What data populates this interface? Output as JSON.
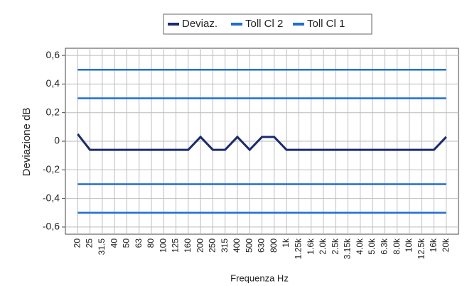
{
  "chart_data": {
    "type": "line",
    "categories": [
      "20",
      "25",
      "31.5",
      "40",
      "50",
      "63",
      "80",
      "100",
      "125",
      "160",
      "200",
      "250",
      "315",
      "400",
      "500",
      "630",
      "800",
      "1k",
      "1.25k",
      "1.6k",
      "2.0k",
      "2.5k",
      "3.15k",
      "4.0k",
      "5.0k",
      "6.3k",
      "8.0k",
      "10k",
      "12.5k",
      "16k",
      "20k"
    ],
    "series": [
      {
        "name": "Deviaz.",
        "color": "#1b2b6e",
        "values": [
          0.05,
          -0.06,
          -0.06,
          -0.06,
          -0.06,
          -0.06,
          -0.06,
          -0.06,
          -0.06,
          -0.06,
          0.03,
          -0.06,
          -0.06,
          0.03,
          -0.06,
          0.03,
          0.03,
          -0.06,
          -0.06,
          -0.06,
          -0.06,
          -0.06,
          -0.06,
          -0.06,
          -0.06,
          -0.06,
          -0.06,
          -0.06,
          -0.06,
          -0.06,
          0.03
        ]
      },
      {
        "name": "Toll Cl 2",
        "color": "#1f6fd0",
        "values": [
          0.3,
          0.3,
          0.3,
          0.3,
          0.3,
          0.3,
          0.3,
          0.3,
          0.3,
          0.3,
          0.3,
          0.3,
          0.3,
          0.3,
          0.3,
          0.3,
          0.3,
          0.3,
          0.3,
          0.3,
          0.3,
          0.3,
          0.3,
          0.3,
          0.3,
          0.3,
          0.3,
          0.3,
          0.3,
          0.3,
          0.3
        ],
        "lower": [
          -0.3,
          -0.3,
          -0.3,
          -0.3,
          -0.3,
          -0.3,
          -0.3,
          -0.3,
          -0.3,
          -0.3,
          -0.3,
          -0.3,
          -0.3,
          -0.3,
          -0.3,
          -0.3,
          -0.3,
          -0.3,
          -0.3,
          -0.3,
          -0.3,
          -0.3,
          -0.3,
          -0.3,
          -0.3,
          -0.3,
          -0.3,
          -0.3,
          -0.3,
          -0.3,
          -0.3
        ]
      },
      {
        "name": "Toll Cl 1",
        "color": "#1f6fd0",
        "values": [
          0.5,
          0.5,
          0.5,
          0.5,
          0.5,
          0.5,
          0.5,
          0.5,
          0.5,
          0.5,
          0.5,
          0.5,
          0.5,
          0.5,
          0.5,
          0.5,
          0.5,
          0.5,
          0.5,
          0.5,
          0.5,
          0.5,
          0.5,
          0.5,
          0.5,
          0.5,
          0.5,
          0.5,
          0.5,
          0.5,
          0.5
        ],
        "lower": [
          -0.5,
          -0.5,
          -0.5,
          -0.5,
          -0.5,
          -0.5,
          -0.5,
          -0.5,
          -0.5,
          -0.5,
          -0.5,
          -0.5,
          -0.5,
          -0.5,
          -0.5,
          -0.5,
          -0.5,
          -0.5,
          -0.5,
          -0.5,
          -0.5,
          -0.5,
          -0.5,
          -0.5,
          -0.5,
          -0.5,
          -0.5,
          -0.5,
          -0.5,
          -0.5,
          -0.5
        ]
      }
    ],
    "x_label": "Frequenza Hz",
    "y_label": "Deviazione dB",
    "ylim": [
      -0.65,
      0.65
    ],
    "yticks": [
      {
        "value": -0.6,
        "label": "-0,6"
      },
      {
        "value": -0.4,
        "label": "-0,4"
      },
      {
        "value": -0.2,
        "label": "-0,2"
      },
      0,
      {
        "value": 0.2,
        "label": "0,2"
      },
      {
        "value": 0.4,
        "label": "0,4"
      },
      {
        "value": 0.6,
        "label": "0,6"
      }
    ],
    "grid": true,
    "legend": "top"
  }
}
